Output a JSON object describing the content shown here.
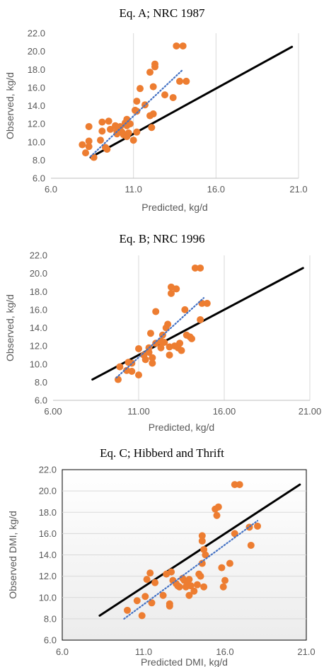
{
  "chart_data": [
    {
      "type": "scatter",
      "title": "Eq. A; NRC 1987",
      "xlabel": "Predicted, kg/d",
      "ylabel": "Observed, kg/d",
      "xlim": [
        6.0,
        21.0
      ],
      "ylim": [
        6.0,
        22.0
      ],
      "xticks": [
        "6.0",
        "11.0",
        "16.0",
        "21.0"
      ],
      "yticks": [
        "6.0",
        "8.0",
        "10.0",
        "12.0",
        "14.0",
        "16.0",
        "18.0",
        "20.0",
        "22.0"
      ],
      "grid": "vertical",
      "plot_background": "#ffffff",
      "marker_color": "#ED7D31",
      "unity_line": {
        "x": [
          8.4,
          20.6
        ],
        "y": [
          8.3,
          20.5
        ],
        "color": "#000000"
      },
      "trend_line": {
        "x": [
          8.4,
          14.0
        ],
        "y": [
          8.4,
          18.0
        ],
        "color": "#4472C4"
      },
      "points": [
        [
          7.9,
          9.7
        ],
        [
          8.1,
          8.8
        ],
        [
          8.3,
          11.7
        ],
        [
          8.3,
          10.1
        ],
        [
          8.3,
          9.5
        ],
        [
          8.6,
          8.3
        ],
        [
          9.0,
          10.2
        ],
        [
          9.1,
          11.2
        ],
        [
          9.1,
          12.2
        ],
        [
          9.3,
          9.4
        ],
        [
          9.4,
          9.2
        ],
        [
          9.5,
          12.3
        ],
        [
          9.6,
          11.4
        ],
        [
          9.9,
          11.8
        ],
        [
          10.0,
          11.2
        ],
        [
          10.0,
          10.9
        ],
        [
          10.1,
          11.6
        ],
        [
          10.2,
          11.7
        ],
        [
          10.3,
          11.1
        ],
        [
          10.4,
          10.8
        ],
        [
          10.5,
          12.1
        ],
        [
          10.6,
          11.8
        ],
        [
          10.6,
          12.5
        ],
        [
          10.6,
          10.6
        ],
        [
          10.7,
          11.0
        ],
        [
          10.8,
          12.0
        ],
        [
          11.0,
          10.2
        ],
        [
          11.1,
          13.5
        ],
        [
          11.2,
          11.1
        ],
        [
          11.2,
          14.5
        ],
        [
          11.2,
          13.4
        ],
        [
          11.4,
          15.9
        ],
        [
          11.7,
          14.1
        ],
        [
          12.0,
          17.7
        ],
        [
          12.0,
          12.9
        ],
        [
          12.1,
          11.6
        ],
        [
          12.2,
          13.1
        ],
        [
          12.2,
          16.1
        ],
        [
          12.3,
          18.6
        ],
        [
          12.3,
          18.3
        ],
        [
          12.9,
          15.2
        ],
        [
          13.4,
          14.9
        ],
        [
          13.6,
          20.6
        ],
        [
          13.8,
          16.7
        ],
        [
          14.0,
          20.6
        ],
        [
          14.2,
          16.7
        ]
      ]
    },
    {
      "type": "scatter",
      "title": "Eq. B; NRC 1996",
      "xlabel": "Predicted, kg/d",
      "ylabel": "Observed, kg/d",
      "xlim": [
        6.0,
        21.0
      ],
      "ylim": [
        6.0,
        22.0
      ],
      "xticks": [
        "6.00",
        "11.00",
        "16.00",
        "21.00"
      ],
      "yticks": [
        "6.0",
        "8.0",
        "10.0",
        "12.0",
        "14.0",
        "16.0",
        "18.0",
        "20.0",
        "22.0"
      ],
      "grid": "vertical",
      "plot_background": "#ffffff",
      "marker_color": "#ED7D31",
      "unity_line": {
        "x": [
          8.3,
          20.6
        ],
        "y": [
          8.3,
          20.6
        ],
        "color": "#000000"
      },
      "trend_line": {
        "x": [
          9.7,
          14.8
        ],
        "y": [
          8.5,
          17.3
        ],
        "color": "#4472C4"
      },
      "points": [
        [
          9.8,
          8.3
        ],
        [
          9.9,
          9.7
        ],
        [
          10.3,
          9.3
        ],
        [
          10.4,
          10.2
        ],
        [
          10.6,
          9.2
        ],
        [
          10.6,
          10.1
        ],
        [
          11.0,
          8.8
        ],
        [
          11.0,
          11.7
        ],
        [
          11.3,
          11.0
        ],
        [
          11.4,
          10.5
        ],
        [
          11.6,
          11.3
        ],
        [
          11.6,
          11.8
        ],
        [
          11.7,
          13.4
        ],
        [
          11.8,
          10.7
        ],
        [
          11.8,
          10.1
        ],
        [
          12.0,
          12.3
        ],
        [
          12.0,
          15.8
        ],
        [
          12.3,
          12.5
        ],
        [
          12.3,
          11.8
        ],
        [
          12.4,
          13.2
        ],
        [
          12.5,
          12.4
        ],
        [
          12.6,
          14.0
        ],
        [
          12.7,
          14.4
        ],
        [
          12.8,
          11.9
        ],
        [
          12.8,
          11.0
        ],
        [
          12.9,
          17.8
        ],
        [
          12.9,
          18.5
        ],
        [
          13.1,
          12.0
        ],
        [
          13.2,
          18.3
        ],
        [
          13.3,
          11.8
        ],
        [
          13.4,
          12.3
        ],
        [
          13.5,
          11.5
        ],
        [
          13.7,
          16.0
        ],
        [
          13.8,
          13.2
        ],
        [
          14.0,
          13.0
        ],
        [
          14.1,
          12.8
        ],
        [
          14.3,
          20.6
        ],
        [
          14.6,
          20.6
        ],
        [
          14.6,
          14.9
        ],
        [
          14.7,
          16.7
        ],
        [
          15.0,
          16.7
        ]
      ]
    },
    {
      "type": "scatter",
      "title": "Eq. C; Hibberd and Thrift",
      "xlabel": "Predicted DMI, kg/d",
      "ylabel": "Observed DMI, kg/d",
      "xlim": [
        6.0,
        21.0
      ],
      "ylim": [
        6.0,
        22.0
      ],
      "xticks": [
        "6.0",
        "11.0",
        "16.0",
        "21.0"
      ],
      "yticks": [
        "6.0",
        "8.0",
        "10.0",
        "12.0",
        "14.0",
        "16.0",
        "18.0",
        "20.0",
        "22.0"
      ],
      "grid": "horizontal",
      "plot_background": "#ffffff",
      "marker_color": "#ED7D31",
      "unity_line": {
        "x": [
          8.3,
          20.6
        ],
        "y": [
          8.3,
          20.6
        ],
        "color": "#000000"
      },
      "trend_line": {
        "x": [
          9.8,
          18.0
        ],
        "y": [
          8.0,
          17.2
        ],
        "color": "#4472C4"
      },
      "points": [
        [
          10.0,
          8.8
        ],
        [
          10.6,
          9.7
        ],
        [
          10.9,
          8.3
        ],
        [
          11.1,
          10.1
        ],
        [
          11.2,
          11.7
        ],
        [
          11.4,
          12.3
        ],
        [
          11.5,
          9.5
        ],
        [
          11.7,
          11.4
        ],
        [
          12.2,
          10.2
        ],
        [
          12.4,
          12.2
        ],
        [
          12.6,
          9.4
        ],
        [
          12.6,
          9.2
        ],
        [
          12.7,
          12.4
        ],
        [
          12.8,
          11.6
        ],
        [
          13.0,
          11.3
        ],
        [
          13.1,
          11.1
        ],
        [
          13.2,
          11.0
        ],
        [
          13.4,
          11.8
        ],
        [
          13.5,
          11.6
        ],
        [
          13.6,
          11.0
        ],
        [
          13.7,
          11.5
        ],
        [
          13.8,
          11.7
        ],
        [
          13.8,
          10.2
        ],
        [
          13.9,
          11.1
        ],
        [
          14.1,
          10.6
        ],
        [
          14.3,
          11.2
        ],
        [
          14.4,
          12.2
        ],
        [
          14.5,
          12.0
        ],
        [
          14.6,
          13.2
        ],
        [
          14.6,
          15.8
        ],
        [
          14.6,
          15.3
        ],
        [
          14.7,
          14.5
        ],
        [
          14.7,
          11.0
        ],
        [
          14.8,
          14.0
        ],
        [
          15.4,
          18.3
        ],
        [
          15.5,
          17.7
        ],
        [
          15.6,
          18.5
        ],
        [
          15.8,
          12.8
        ],
        [
          15.9,
          11.0
        ],
        [
          16.0,
          11.6
        ],
        [
          16.3,
          13.2
        ],
        [
          16.6,
          20.6
        ],
        [
          16.6,
          16.0
        ],
        [
          16.9,
          20.6
        ],
        [
          17.5,
          16.6
        ],
        [
          17.6,
          14.9
        ],
        [
          18.0,
          16.7
        ]
      ]
    }
  ]
}
